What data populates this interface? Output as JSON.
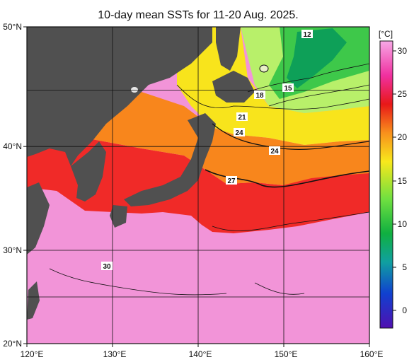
{
  "title": "10-day mean SSTs for 11-20 Aug. 2025.",
  "lat_labels": [
    "50°N",
    "40°N",
    "30°N",
    "20°N"
  ],
  "lon_labels": [
    "120°E",
    "130°E",
    "140°E",
    "150°E",
    "160°E"
  ],
  "colorbar": {
    "unit": "[°C]",
    "ticks": [
      "30",
      "25",
      "20",
      "15",
      "10",
      "5",
      "0"
    ]
  },
  "contour_labels": [
    "12",
    "15",
    "18",
    "21",
    "24",
    "24",
    "27",
    "30"
  ],
  "colors": {
    "land": "#505050",
    "warmest": "#f294d8",
    "red": "#f02020",
    "orange": "#f8881c",
    "yellow": "#f8e41c",
    "green": "#50d050",
    "blue": "#2040d0",
    "purple": "#4a10b8"
  }
}
